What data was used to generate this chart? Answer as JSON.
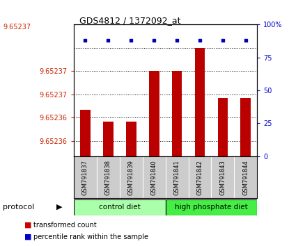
{
  "title": "GDS4812 / 1372092_at",
  "title_clipped": "9.65237",
  "samples": [
    "GSM791837",
    "GSM791838",
    "GSM791839",
    "GSM791840",
    "GSM791841",
    "GSM791842",
    "GSM791843",
    "GSM791844"
  ],
  "red_vals": [
    9.65236,
    9.652357,
    9.652357,
    9.65237,
    9.65237,
    9.652376,
    9.652363,
    9.652363
  ],
  "blue_vals": [
    88,
    88,
    88,
    88,
    88,
    88,
    88,
    88
  ],
  "y_min": 9.652348,
  "y_max": 9.652382,
  "ytick_positions": [
    9.652352,
    9.652358,
    9.652364,
    9.65237
  ],
  "ytick_labels": [
    "9.65236",
    "9.65236",
    "9.65237",
    "9.65237"
  ],
  "right_yticks": [
    0,
    25,
    50,
    75,
    100
  ],
  "right_ytick_labels": [
    "0",
    "25",
    "50",
    "75",
    "100%"
  ],
  "grid_y": [
    9.652352,
    9.652358,
    9.652364,
    9.65237,
    9.652376
  ],
  "groups": [
    {
      "label": "control diet",
      "start": 0,
      "end": 4,
      "color": "#AAFFAA"
    },
    {
      "label": "high phosphate diet",
      "start": 4,
      "end": 8,
      "color": "#44EE44"
    }
  ],
  "protocol_label": "protocol",
  "bar_color": "#BB0000",
  "dot_color": "#0000BB",
  "sample_bg": "#CCCCCC",
  "sample_divider": "#FFFFFF",
  "left_tick_color": "#CC2200",
  "right_tick_color": "#0000CC",
  "title_color": "#000000",
  "legend_red": "#CC0000",
  "legend_blue": "#0000CC",
  "legend_red_label": "transformed count",
  "legend_blue_label": "percentile rank within the sample"
}
